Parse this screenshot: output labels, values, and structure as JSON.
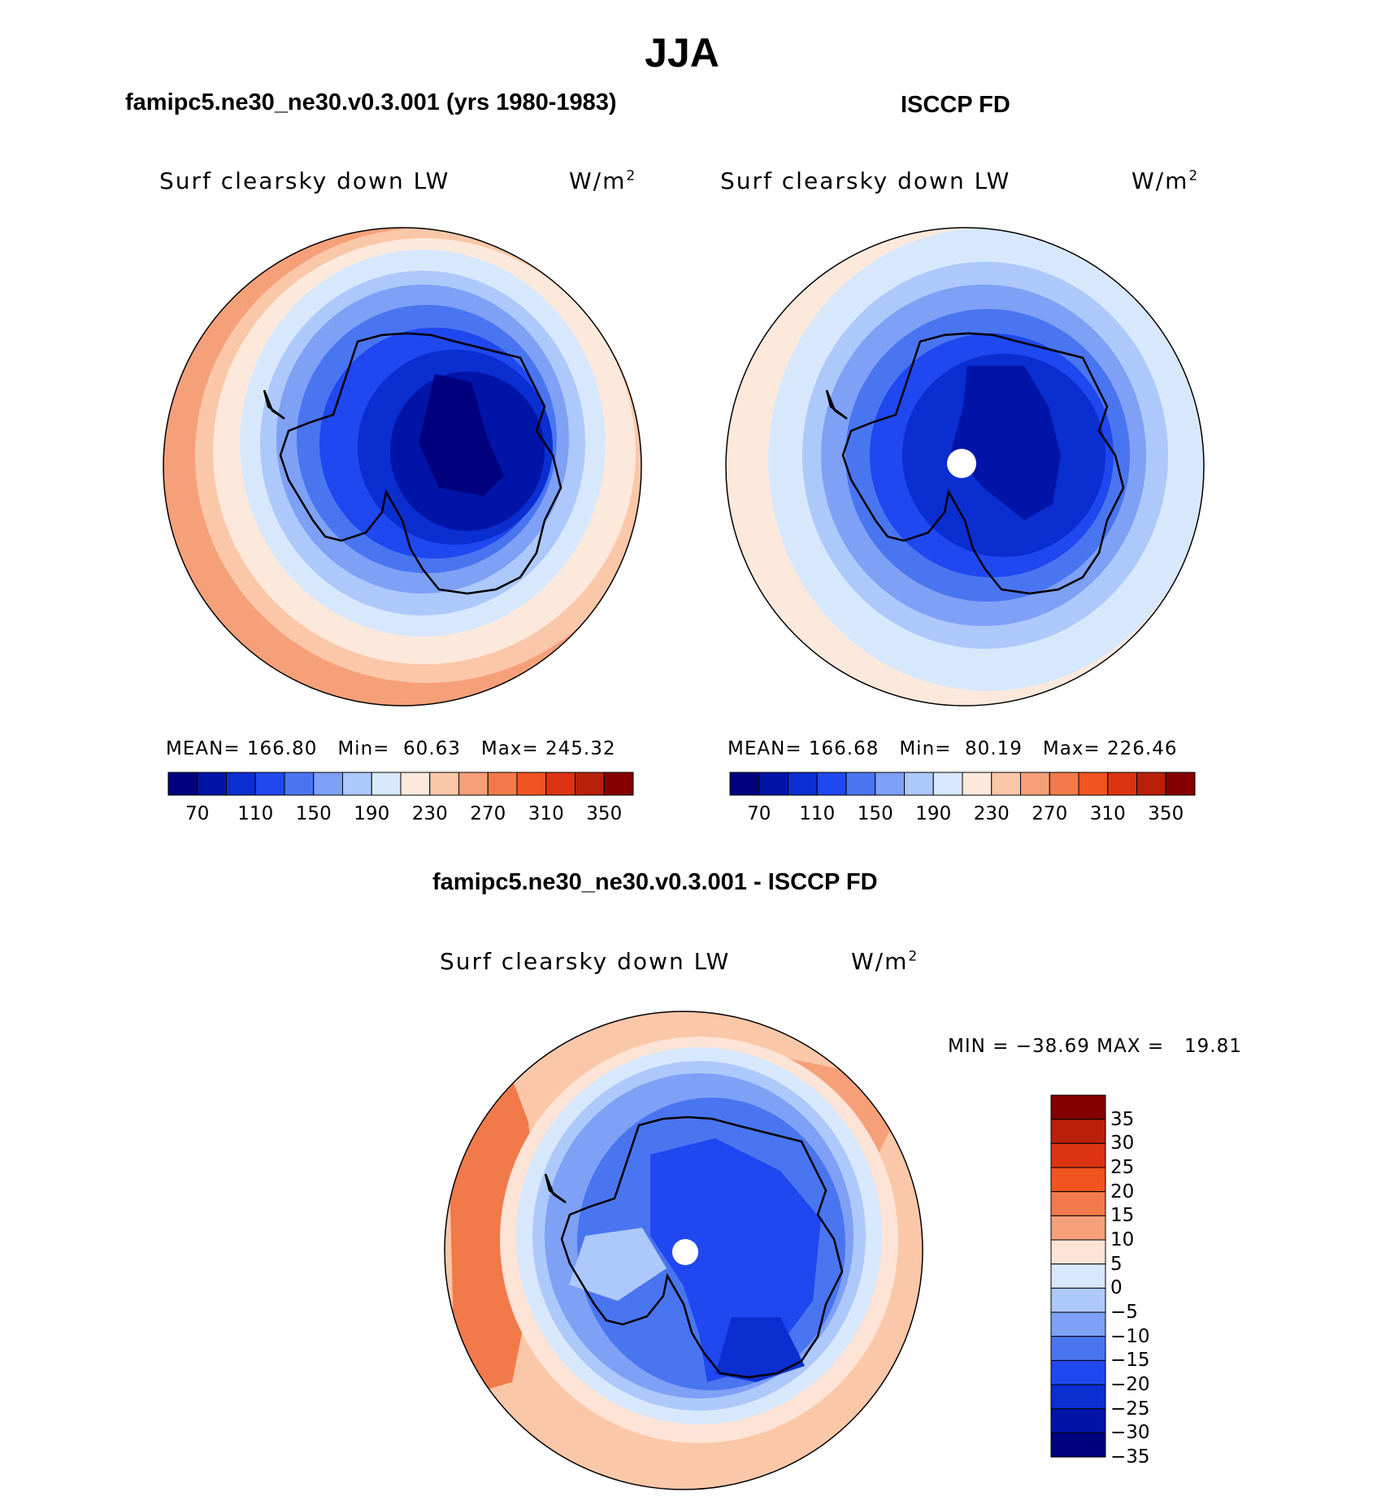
{
  "figure_title": "JJA",
  "panels": [
    {
      "title": "famipc5.ne30_ne30.v0.3.001 (yrs 1980-1983)",
      "field": "Surf clearsky down LW",
      "units_base": "W/m",
      "units_exp": "2",
      "stats": {
        "mean_label": "MEAN=",
        "mean": "166.80",
        "min_label": "Min=",
        "min": "60.63",
        "max_label": "Max=",
        "max": "245.32"
      }
    },
    {
      "title": "ISCCP FD",
      "field": "Surf clearsky down LW",
      "units_base": "W/m",
      "units_exp": "2",
      "stats": {
        "mean_label": "MEAN=",
        "mean": "166.68",
        "min_label": "Min=",
        "min": "80.19",
        "max_label": "Max=",
        "max": "226.46"
      }
    },
    {
      "title": "famipc5.ne30_ne30.v0.3.001 - ISCCP FD",
      "field": "Surf clearsky down LW",
      "units_base": "W/m",
      "units_exp": "2",
      "stats": {
        "min_label": "MIN =",
        "min": "−38.69",
        "max_label": "MAX =",
        "max": "19.81"
      }
    }
  ],
  "colorbar_abs": {
    "colors": [
      "#00007f",
      "#0014a8",
      "#0a2ed0",
      "#1f48f0",
      "#4a75f0",
      "#7ea0f5",
      "#adc8fa",
      "#d8e8fc",
      "#fde9dc",
      "#fbc7a9",
      "#f6a07a",
      "#f27a4a",
      "#f0541f",
      "#dc3412",
      "#b8200a",
      "#840000"
    ],
    "tick_labels": [
      "70",
      "110",
      "150",
      "190",
      "230",
      "270",
      "310",
      "350"
    ]
  },
  "colorbar_diff": {
    "colors": [
      "#840000",
      "#b8200a",
      "#dc3412",
      "#f0541f",
      "#f27a4a",
      "#f6a07a",
      "#fde4d6",
      "#d8e8fc",
      "#adc8fa",
      "#7ea0f5",
      "#4a75f0",
      "#1f48f0",
      "#0a2ed0",
      "#0014a8",
      "#00007f"
    ],
    "tick_labels": [
      "35",
      "30",
      "25",
      "20",
      "15",
      "10",
      "5",
      "0",
      "−5",
      "−10",
      "−15",
      "−20",
      "−25",
      "−30",
      "−35"
    ]
  }
}
